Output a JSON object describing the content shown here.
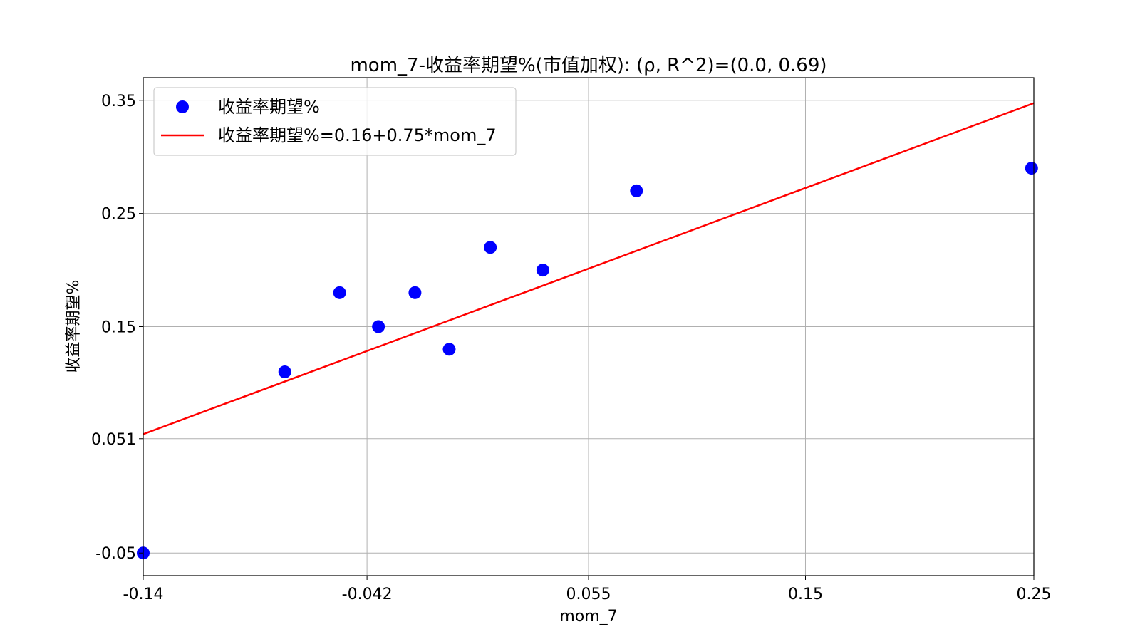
{
  "chart_data": {
    "type": "scatter",
    "title": "mom_7-收益率期望%(市值加权): (ρ, R^2)=(0.0, 0.69)",
    "xlabel": "mom_7",
    "ylabel": "收益率期望%",
    "xlim": [
      -0.14,
      0.25
    ],
    "ylim": [
      -0.07,
      0.37
    ],
    "x_ticks": [
      -0.14,
      -0.042,
      0.055,
      0.15,
      0.25
    ],
    "x_tick_labels": [
      "-0.14",
      "-0.042",
      "0.055",
      "0.15",
      "0.25"
    ],
    "y_ticks": [
      -0.05,
      0.051,
      0.15,
      0.25,
      0.35
    ],
    "y_tick_labels": [
      "-0.05",
      "0.051",
      "0.15",
      "0.25",
      "0.35"
    ],
    "grid": true,
    "legend_position": "top-left",
    "series": [
      {
        "name": "收益率期望%",
        "kind": "scatter",
        "color": "#0000ff",
        "x": [
          -0.14,
          -0.078,
          -0.054,
          -0.037,
          -0.021,
          -0.006,
          0.012,
          0.035,
          0.076,
          0.249
        ],
        "y": [
          -0.05,
          0.11,
          0.18,
          0.15,
          0.18,
          0.13,
          0.22,
          0.2,
          0.27,
          0.29
        ]
      },
      {
        "name": "收益率期望%=0.16+0.75*mom_7",
        "kind": "line",
        "color": "#ff0000",
        "intercept": 0.16,
        "slope": 0.75,
        "x": [
          -0.14,
          0.25
        ],
        "y": [
          0.055,
          0.3475
        ]
      }
    ]
  }
}
